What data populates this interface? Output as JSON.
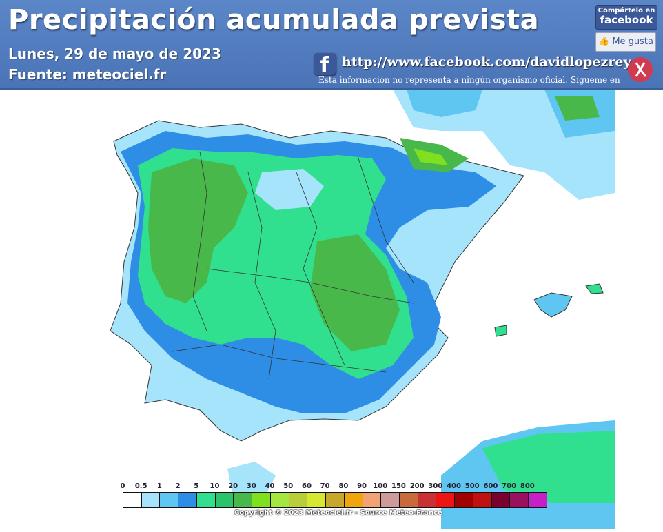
{
  "header": {
    "title": "Precipitación acumulada prevista",
    "date": "Lunes, 29 de mayo de 2023",
    "source": "Fuente:  meteociel.fr",
    "facebook_url": "http://www.facebook.com/davidlopezrey",
    "disclaimer": "Esta información no representa a ningún organismo oficial. Sígueme en",
    "share_small": "Compártelo en",
    "share_big": "facebook",
    "like_label": "Me gusta"
  },
  "legend": {
    "labels": [
      "0",
      "0.5",
      "1",
      "2",
      "5",
      "10",
      "20",
      "30",
      "40",
      "50",
      "60",
      "70",
      "80",
      "90",
      "100",
      "150",
      "200",
      "300",
      "400",
      "500",
      "600",
      "700",
      "800"
    ],
    "colors": [
      "#ffffff",
      "#a6e4fb",
      "#5fc6f2",
      "#2e8ee6",
      "#31e08e",
      "#2bc46a",
      "#49b84b",
      "#7fe020",
      "#a6e640",
      "#b9cf3a",
      "#d6e82f",
      "#c8a82b",
      "#f0a40e",
      "#f3a276",
      "#cf9a9a",
      "#c86a3a",
      "#c83232",
      "#ee1414",
      "#a00000",
      "#c01010",
      "#7a0030",
      "#9a1060",
      "#c81ec8"
    ]
  },
  "copyright": "Copyright © 2023 Meteociel.fr - Source Meteo-France",
  "map_colors": {
    "sea": "#ffffff",
    "light_blue": "#a6e4fb",
    "mid_blue": "#5fc6f2",
    "blue": "#2e8ee6",
    "green_light": "#31e08e",
    "green": "#49b84b"
  }
}
